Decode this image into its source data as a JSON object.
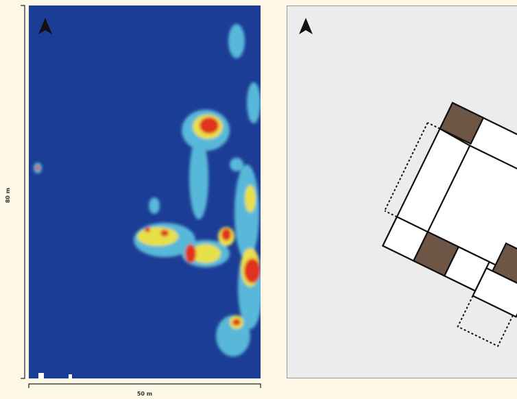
{
  "scale_bars": {
    "vertical": "80 m",
    "horizontal": "50 m"
  }
}
